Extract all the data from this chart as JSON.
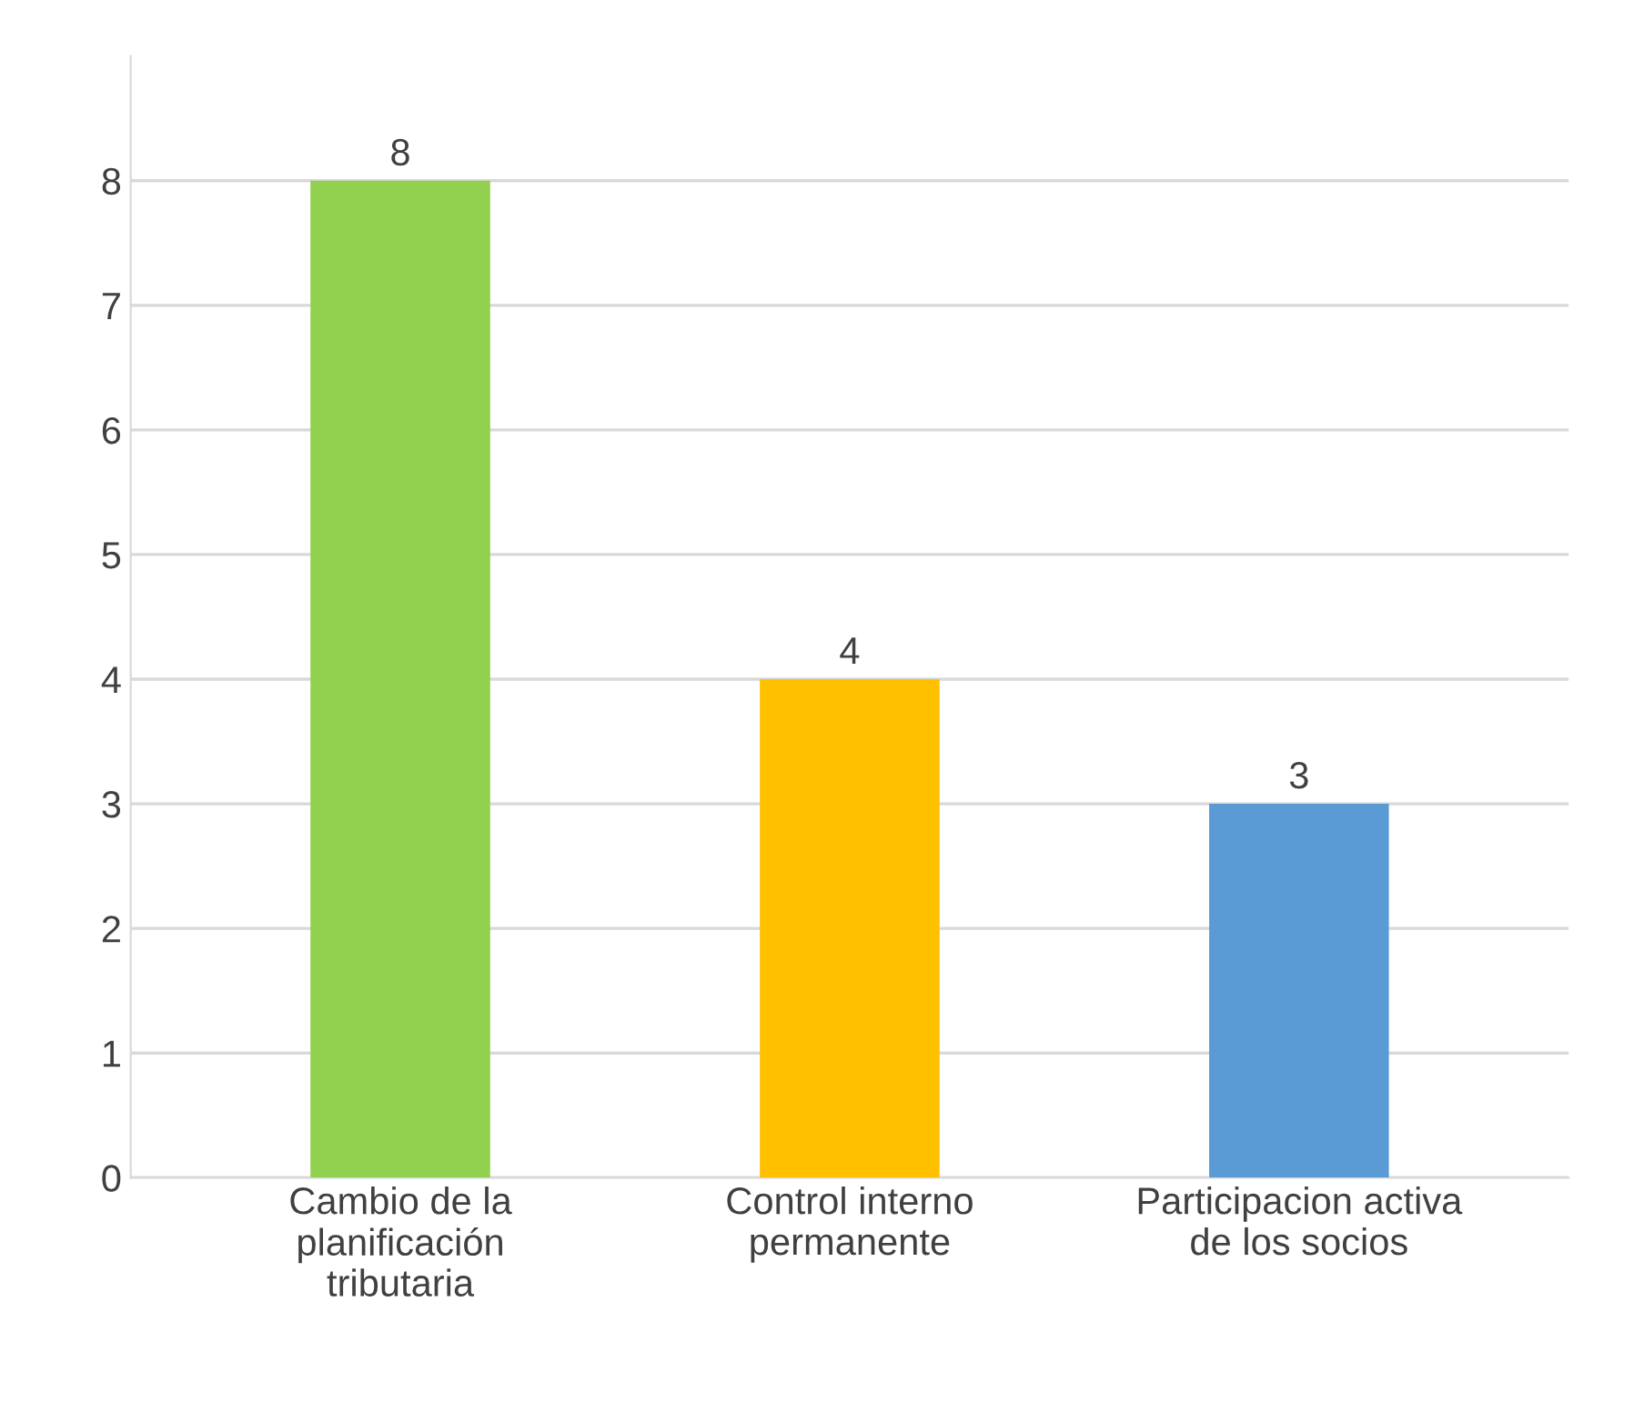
{
  "chart_data": {
    "type": "bar",
    "categories": [
      "Cambio de la\nplanificación\ntributaria",
      "Control interno\npermanente",
      "Participacion activa\nde los socios"
    ],
    "values": [
      8,
      4,
      3
    ],
    "colors": [
      "#92d050",
      "#ffc000",
      "#5b9bd5"
    ],
    "ylim": [
      0,
      9
    ],
    "yticks": [
      0,
      1,
      2,
      3,
      4,
      5,
      6,
      7,
      8
    ],
    "grid": "y",
    "data_labels": true
  }
}
